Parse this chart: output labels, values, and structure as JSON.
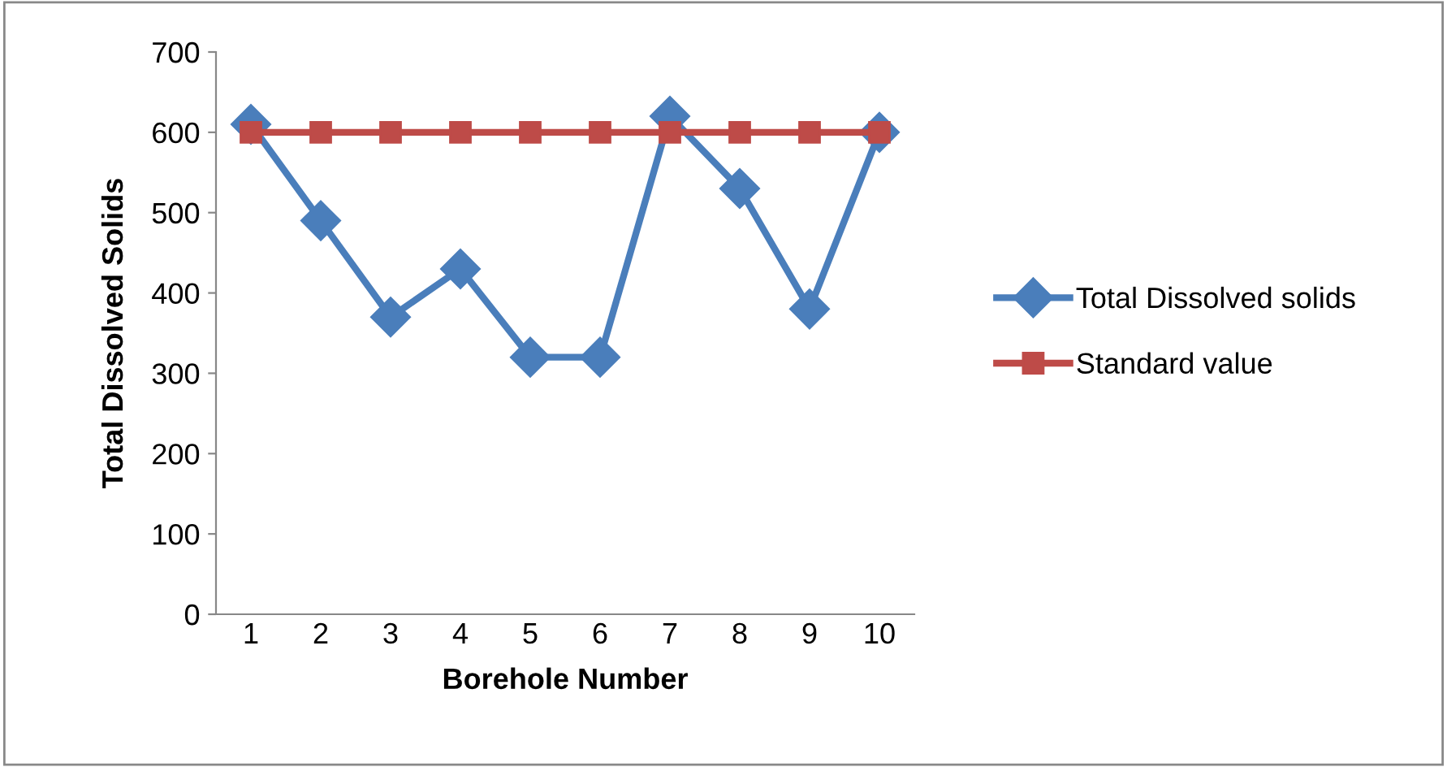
{
  "chart_data": {
    "type": "line",
    "xlabel": "Borehole Number",
    "ylabel": "Total Dissolved Solids",
    "categories": [
      "1",
      "2",
      "3",
      "4",
      "5",
      "6",
      "7",
      "8",
      "9",
      "10"
    ],
    "series": [
      {
        "name": "Total Dissolved solids",
        "color": "#4a7ebb",
        "marker": "diamond",
        "values": [
          610,
          490,
          370,
          430,
          320,
          320,
          620,
          530,
          380,
          600
        ]
      },
      {
        "name": "Standard value",
        "color": "#be4b48",
        "marker": "square",
        "values": [
          600,
          600,
          600,
          600,
          600,
          600,
          600,
          600,
          600,
          600
        ]
      }
    ],
    "ylim": [
      0,
      700
    ],
    "yticks": [
      0,
      100,
      200,
      300,
      400,
      500,
      600,
      700
    ],
    "grid": false,
    "legend": "right",
    "line_style": "solid"
  }
}
